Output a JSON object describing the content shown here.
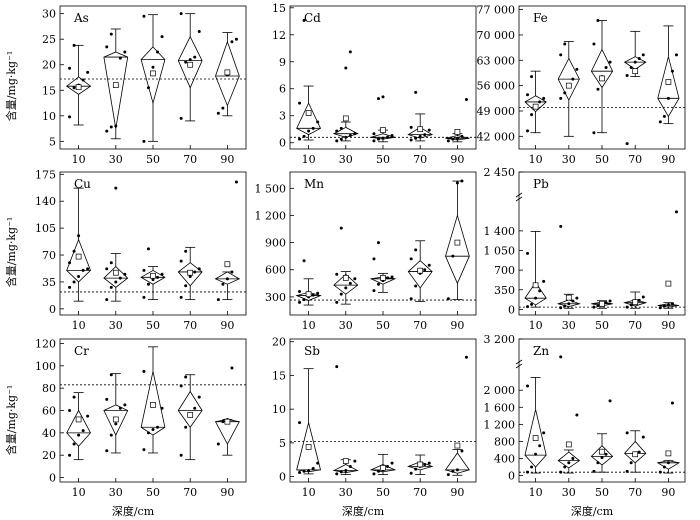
{
  "figure": {
    "ylabel": "含量/mg·kg⁻¹",
    "xlabel": "深度/cm"
  },
  "chart_data": [
    {
      "type": "box",
      "title": "As",
      "categories": [
        "10",
        "30",
        "50",
        "70",
        "90"
      ],
      "yticks": [
        "5",
        "10",
        "15",
        "20",
        "25",
        "30"
      ],
      "yticks_values": [
        5,
        10,
        15,
        20,
        25,
        30
      ],
      "ylim": [
        3.5,
        31.5
      ],
      "reference_line": 17.2,
      "boxes": [
        {
          "min": 8.2,
          "q1": 14.2,
          "median": 15.8,
          "q3": 17.6,
          "max": 23.8,
          "mean": 15.6,
          "points": [
            9.8,
            15.5,
            16.0,
            17.0,
            18.5,
            19.3,
            23.8
          ]
        },
        {
          "min": 5.5,
          "q1": 7.5,
          "median": 21.5,
          "q3": 22.5,
          "max": 27.0,
          "mean": 16.0,
          "points": [
            7.0,
            7.8,
            8.0,
            21.3,
            22.5,
            23.5,
            26.0
          ]
        },
        {
          "min": 5.0,
          "q1": 12.5,
          "median": 21.0,
          "q3": 23.5,
          "max": 29.8,
          "mean": 18.3,
          "points": [
            5.0,
            15.5,
            19.5,
            22.5,
            25.5,
            29.5
          ]
        },
        {
          "min": 9.0,
          "q1": 15.5,
          "median": 20.8,
          "q3": 25.5,
          "max": 30.0,
          "mean": 20.0,
          "points": [
            9.5,
            20.5,
            21.0,
            21.5,
            26.5,
            30.0
          ]
        },
        {
          "min": 10.0,
          "q1": 12.0,
          "median": 17.8,
          "q3": 24.5,
          "max": 26.3,
          "mean": 18.5,
          "points": [
            10.5,
            11.5,
            18.0,
            24.5,
            25.0
          ]
        }
      ]
    },
    {
      "type": "box",
      "title": "Cd",
      "categories": [
        "10",
        "30",
        "50",
        "70",
        "90"
      ],
      "yticks": [
        "0",
        "3",
        "6",
        "9",
        "12",
        "15"
      ],
      "yticks_values": [
        0,
        3,
        6,
        9,
        12,
        15
      ],
      "ylim": [
        -0.7,
        15.2
      ],
      "reference_line": 0.6,
      "boxes": [
        {
          "min": 0.3,
          "q1": 0.9,
          "median": 1.6,
          "q3": 4.4,
          "max": 6.3,
          "mean": 3.3,
          "points": [
            0.4,
            0.7,
            1.3,
            1.6,
            2.3,
            4.4,
            13.6
          ]
        },
        {
          "min": 0.2,
          "q1": 0.6,
          "median": 1.0,
          "q3": 1.7,
          "max": 2.3,
          "mean": 2.7,
          "points": [
            0.2,
            0.4,
            0.6,
            0.8,
            1.0,
            1.3,
            1.6,
            8.3,
            10.1
          ]
        },
        {
          "min": 0.1,
          "q1": 0.4,
          "median": 0.6,
          "q3": 1.0,
          "max": 1.4,
          "mean": 1.4,
          "points": [
            0.2,
            0.4,
            0.5,
            0.6,
            0.8,
            1.0,
            4.9,
            5.1
          ]
        },
        {
          "min": 0.2,
          "q1": 0.5,
          "median": 0.9,
          "q3": 1.7,
          "max": 3.2,
          "mean": 1.5,
          "points": [
            0.3,
            0.5,
            0.7,
            0.9,
            1.4,
            1.7,
            5.6
          ]
        },
        {
          "min": 0.1,
          "q1": 0.3,
          "median": 0.5,
          "q3": 0.8,
          "max": 1.0,
          "mean": 1.2,
          "points": [
            0.2,
            0.4,
            0.5,
            0.7,
            4.8
          ]
        }
      ]
    },
    {
      "type": "box",
      "title": "Fe",
      "categories": [
        "10",
        "30",
        "50",
        "70",
        "90"
      ],
      "yticks": [
        "42 000",
        "49 000",
        "56 000",
        "63 000",
        "70 000",
        "77 000"
      ],
      "yticks_values": [
        42000,
        49000,
        56000,
        63000,
        70000,
        77000
      ],
      "ylim": [
        38500,
        78000
      ],
      "reference_line": 50000,
      "boxes": [
        {
          "min": 43000,
          "q1": 48800,
          "median": 51500,
          "q3": 53200,
          "max": 60000,
          "mean": 50200,
          "points": [
            43500,
            48000,
            50000,
            51500,
            52500,
            53500,
            58500
          ]
        },
        {
          "min": 42000,
          "q1": 52000,
          "median": 57800,
          "q3": 63500,
          "max": 68200,
          "mean": 56000,
          "points": [
            52500,
            54000,
            56000,
            57800,
            60500,
            64500,
            67500
          ]
        },
        {
          "min": 43000,
          "q1": 55500,
          "median": 60000,
          "q3": 66000,
          "max": 74000,
          "mean": 58000,
          "points": [
            43000,
            55000,
            58500,
            61000,
            62500,
            67500,
            74000
          ]
        },
        {
          "min": 58500,
          "q1": 60500,
          "median": 62500,
          "q3": 64000,
          "max": 71000,
          "mean": 60000,
          "points": [
            58800,
            61000,
            62500,
            63500,
            64500,
            40000
          ]
        },
        {
          "min": 45500,
          "q1": 47500,
          "median": 52500,
          "q3": 64000,
          "max": 72500,
          "mean": 57000,
          "points": [
            46000,
            47500,
            52500,
            60000,
            64500
          ]
        }
      ]
    },
    {
      "type": "box",
      "title": "Cu",
      "categories": [
        "10",
        "30",
        "50",
        "70",
        "90"
      ],
      "yticks": [
        "0",
        "35",
        "70",
        "105",
        "140",
        "175"
      ],
      "yticks_values": [
        0,
        35,
        70,
        105,
        140,
        175
      ],
      "ylim": [
        -8,
        178
      ],
      "reference_line": 22,
      "boxes": [
        {
          "min": 10,
          "q1": 35,
          "median": 50,
          "q3": 90,
          "max": 157,
          "mean": 68,
          "points": [
            28,
            35,
            42,
            50,
            52,
            60,
            75,
            95
          ]
        },
        {
          "min": 10,
          "q1": 28,
          "median": 40,
          "q3": 55,
          "max": 72,
          "mean": 47,
          "points": [
            12,
            28,
            35,
            40,
            45,
            52,
            60,
            157
          ]
        },
        {
          "min": 12,
          "q1": 32,
          "median": 41,
          "q3": 50,
          "max": 55,
          "mean": 43,
          "points": [
            15,
            32,
            38,
            41,
            45,
            50,
            78
          ]
        },
        {
          "min": 12,
          "q1": 30,
          "median": 48,
          "q3": 60,
          "max": 80,
          "mean": 47,
          "points": [
            15,
            30,
            42,
            48,
            52,
            62,
            75
          ]
        },
        {
          "min": 12,
          "q1": 32,
          "median": 39,
          "q3": 48,
          "max": 48,
          "mean": 58,
          "points": [
            12,
            32,
            39,
            48,
            165
          ]
        }
      ]
    },
    {
      "type": "box",
      "title": "Mn",
      "categories": [
        "10",
        "30",
        "50",
        "70",
        "90"
      ],
      "yticks": [
        "300",
        "600",
        "900",
        "1 200",
        "1 500"
      ],
      "yticks_values": [
        300,
        600,
        900,
        1200,
        1500
      ],
      "ylim": [
        100,
        1680
      ],
      "reference_line": 265,
      "boxes": [
        {
          "min": 210,
          "q1": 260,
          "median": 315,
          "q3": 350,
          "max": 500,
          "mean": 330,
          "points": [
            240,
            270,
            300,
            320,
            340,
            360,
            700
          ]
        },
        {
          "min": 220,
          "q1": 330,
          "median": 430,
          "q3": 550,
          "max": 580,
          "mean": 510,
          "points": [
            240,
            330,
            400,
            450,
            500,
            550,
            1060
          ]
        },
        {
          "min": 350,
          "q1": 440,
          "median": 500,
          "q3": 520,
          "max": 560,
          "mean": 510,
          "points": [
            370,
            440,
            480,
            510,
            520,
            720,
            900
          ]
        },
        {
          "min": 250,
          "q1": 400,
          "median": 580,
          "q3": 700,
          "max": 920,
          "mean": 590,
          "points": [
            280,
            420,
            560,
            600,
            650,
            720,
            820
          ]
        },
        {
          "min": 270,
          "q1": 450,
          "median": 750,
          "q3": 1200,
          "max": 1580,
          "mean": 900,
          "points": [
            280,
            750,
            1560,
            1580
          ]
        }
      ]
    },
    {
      "type": "box",
      "title": "Pb",
      "categories": [
        "10",
        "30",
        "50",
        "70",
        "90"
      ],
      "yticks": [
        "0",
        "350",
        "700",
        "1 050",
        "1 400",
        "2 450"
      ],
      "yticks_values": [
        0,
        350,
        700,
        1050,
        1400,
        2450
      ],
      "ylim": [
        -100,
        2450
      ],
      "axis_break": true,
      "reference_line": 40,
      "boxes": [
        {
          "min": 40,
          "q1": 80,
          "median": 200,
          "q3": 480,
          "max": 1390,
          "mean": 430,
          "points": [
            50,
            90,
            200,
            330,
            500,
            1000
          ]
        },
        {
          "min": 20,
          "q1": 50,
          "median": 100,
          "q3": 170,
          "max": 270,
          "mean": 210,
          "points": [
            30,
            60,
            100,
            150,
            200,
            1480
          ]
        },
        {
          "min": 20,
          "q1": 60,
          "median": 100,
          "q3": 130,
          "max": 155,
          "mean": 100,
          "points": [
            40,
            70,
            100,
            120,
            150
          ]
        },
        {
          "min": 20,
          "q1": 60,
          "median": 120,
          "q3": 170,
          "max": 310,
          "mean": 130,
          "points": [
            40,
            80,
            120,
            160,
            220
          ]
        },
        {
          "min": 20,
          "q1": 40,
          "median": 70,
          "q3": 100,
          "max": 120,
          "mean": 460,
          "points": [
            30,
            60,
            80,
            100,
            1740
          ]
        }
      ]
    },
    {
      "type": "box",
      "title": "Cr",
      "categories": [
        "10",
        "30",
        "50",
        "70",
        "90"
      ],
      "yticks": [
        "0",
        "20",
        "40",
        "60",
        "80",
        "100",
        "120"
      ],
      "yticks_values": [
        0,
        20,
        40,
        60,
        80,
        100,
        120
      ],
      "ylim": [
        -4,
        124
      ],
      "reference_line": 83,
      "boxes": [
        {
          "min": 16,
          "q1": 28,
          "median": 40,
          "q3": 60,
          "max": 76,
          "mean": 52,
          "points": [
            20,
            30,
            38,
            42,
            55,
            60,
            72
          ]
        },
        {
          "min": 22,
          "q1": 38,
          "median": 60,
          "q3": 65,
          "max": 93,
          "mean": 52,
          "points": [
            24,
            38,
            48,
            62,
            65,
            70,
            92
          ]
        },
        {
          "min": 22,
          "q1": 38,
          "median": 45,
          "q3": 95,
          "max": 117,
          "mean": 65,
          "points": [
            25,
            40,
            43,
            45,
            62,
            95
          ]
        },
        {
          "min": 16,
          "q1": 45,
          "median": 60,
          "q3": 77,
          "max": 92,
          "mean": 56,
          "points": [
            20,
            45,
            55,
            62,
            72,
            82,
            90
          ]
        },
        {
          "min": 20,
          "q1": 30,
          "median": 50,
          "q3": 52,
          "max": 52,
          "mean": 50,
          "points": [
            30,
            50,
            52,
            98
          ]
        }
      ]
    },
    {
      "type": "box",
      "title": "Sb",
      "categories": [
        "10",
        "30",
        "50",
        "70",
        "90"
      ],
      "yticks": [
        "0",
        "5",
        "10",
        "15",
        "20"
      ],
      "yticks_values": [
        0,
        5,
        10,
        15,
        20
      ],
      "ylim": [
        -0.8,
        20.4
      ],
      "reference_line": 5.2,
      "boxes": [
        {
          "min": 0.4,
          "q1": 0.7,
          "median": 1.0,
          "q3": 8.0,
          "max": 16.0,
          "mean": 4.4,
          "points": [
            0.6,
            0.8,
            0.9,
            1.2,
            2.0,
            8.0
          ]
        },
        {
          "min": 0.3,
          "q1": 0.6,
          "median": 0.9,
          "q3": 1.8,
          "max": 2.5,
          "mean": 2.3,
          "points": [
            0.4,
            0.7,
            0.9,
            1.5,
            2.3,
            16.3
          ]
        },
        {
          "min": 0.3,
          "q1": 0.7,
          "median": 1.0,
          "q3": 1.8,
          "max": 3.3,
          "mean": 1.3,
          "points": [
            0.4,
            0.8,
            1.0,
            1.5,
            2.0
          ]
        },
        {
          "min": 0.3,
          "q1": 1.0,
          "median": 1.5,
          "q3": 2.2,
          "max": 3.2,
          "mean": 1.8,
          "points": [
            0.5,
            1.1,
            1.5,
            1.8,
            2.0
          ]
        },
        {
          "min": 0.2,
          "q1": 0.5,
          "median": 1.0,
          "q3": 3.5,
          "max": 4.0,
          "mean": 4.6,
          "points": [
            0.3,
            0.8,
            1.0,
            3.8,
            17.7
          ]
        }
      ]
    },
    {
      "type": "box",
      "title": "Zn",
      "categories": [
        "10",
        "30",
        "50",
        "70",
        "90"
      ],
      "yticks": [
        "0",
        "400",
        "800",
        "1 200",
        "1 600",
        "2 000",
        "3 200"
      ],
      "yticks_values": [
        0,
        400,
        800,
        1200,
        1600,
        2000,
        3200
      ],
      "ylim": [
        -150,
        3200
      ],
      "axis_break": true,
      "reference_line": 80,
      "boxes": [
        {
          "min": 60,
          "q1": 200,
          "median": 480,
          "q3": 1550,
          "max": 2300,
          "mean": 880,
          "points": [
            80,
            200,
            500,
            700,
            1000,
            2100
          ]
        },
        {
          "min": 60,
          "q1": 180,
          "median": 350,
          "q3": 550,
          "max": 600,
          "mean": 730,
          "points": [
            80,
            200,
            300,
            400,
            1420,
            2780
          ]
        },
        {
          "min": 80,
          "q1": 250,
          "median": 450,
          "q3": 700,
          "max": 980,
          "mean": 560,
          "points": [
            100,
            300,
            420,
            500,
            1750
          ]
        },
        {
          "min": 80,
          "q1": 300,
          "median": 520,
          "q3": 800,
          "max": 1050,
          "mean": 500,
          "points": [
            100,
            300,
            480,
            550,
            900,
            1000
          ]
        },
        {
          "min": 60,
          "q1": 150,
          "median": 300,
          "q3": 350,
          "max": 350,
          "mean": 520,
          "points": [
            80,
            200,
            300,
            1700
          ]
        }
      ]
    }
  ]
}
